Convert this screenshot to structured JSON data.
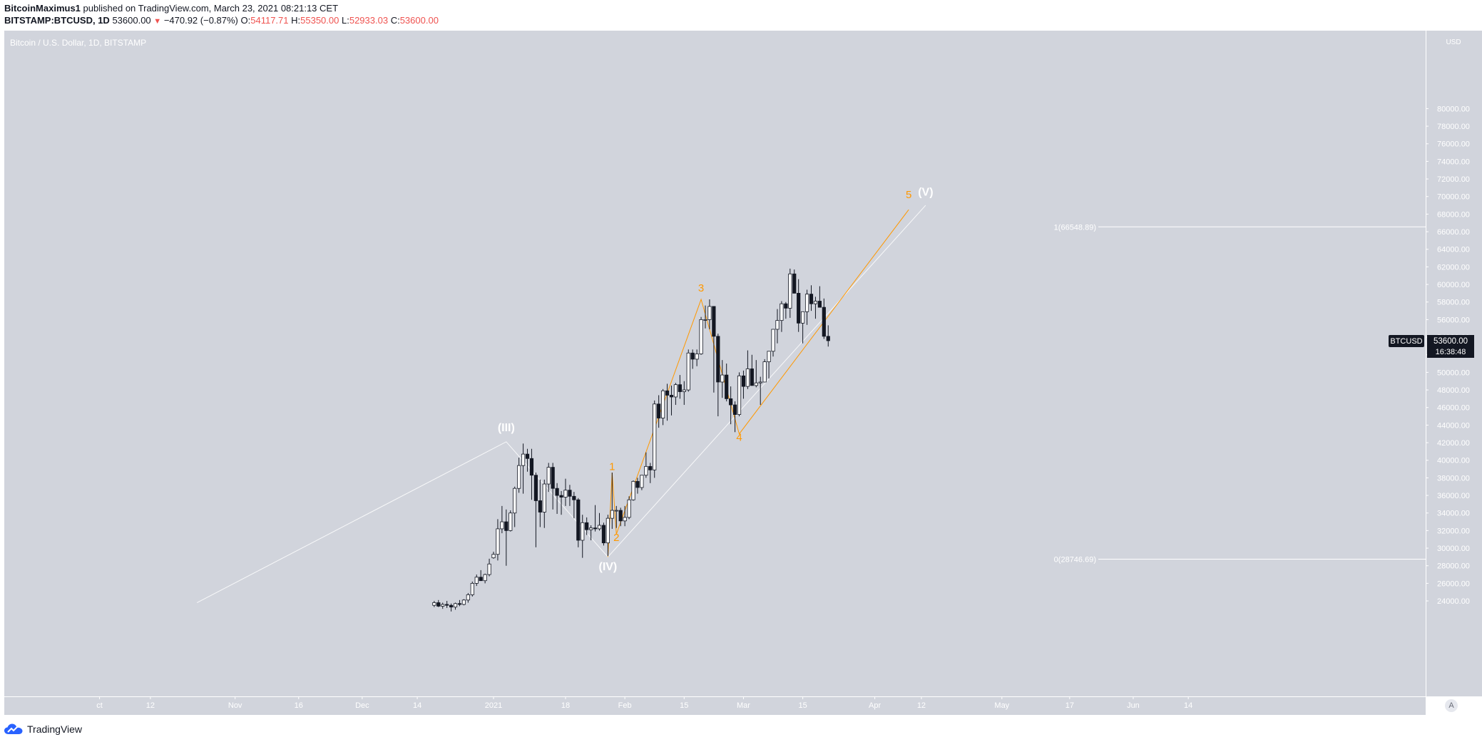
{
  "header": {
    "author": "BitcoinMaximus1",
    "published_text": "published on TradingView.com, March 23, 2021 08:21:13 CET",
    "symbol": "BITSTAMP:BTCUSD, 1D",
    "last": "53600.00",
    "change": "−470.92 (−0.87%)",
    "o_label": "O:",
    "o_value": "54117.71",
    "h_label": "H:",
    "h_value": "55350.00",
    "l_label": "L:",
    "l_value": "52933.03",
    "c_label": "C:",
    "c_value": "53600.00"
  },
  "chart_title": "Bitcoin / U.S. Dollar, 1D, BITSTAMP",
  "price_scale_currency": "USD",
  "price_ticks": [
    "80000.00",
    "78000.00",
    "76000.00",
    "74000.00",
    "72000.00",
    "70000.00",
    "68000.00",
    "66000.00",
    "64000.00",
    "62000.00",
    "60000.00",
    "58000.00",
    "56000.00",
    "54000.00",
    "52000.00",
    "50000.00",
    "48000.00",
    "46000.00",
    "44000.00",
    "42000.00",
    "40000.00",
    "38000.00",
    "36000.00",
    "34000.00",
    "32000.00",
    "30000.00",
    "28000.00",
    "26000.00",
    "24000.00"
  ],
  "time_ticks": [
    {
      "label": "ct",
      "d": -93
    },
    {
      "label": "12",
      "d": -81
    },
    {
      "label": "Nov",
      "d": -61
    },
    {
      "label": "16",
      "d": -46
    },
    {
      "label": "Dec",
      "d": -31
    },
    {
      "label": "14",
      "d": -18
    },
    {
      "label": "2021",
      "d": 0
    },
    {
      "label": "18",
      "d": 17
    },
    {
      "label": "Feb",
      "d": 31
    },
    {
      "label": "15",
      "d": 45
    },
    {
      "label": "Mar",
      "d": 59
    },
    {
      "label": "15",
      "d": 73
    },
    {
      "label": "Apr",
      "d": 90
    },
    {
      "label": "12",
      "d": 101
    },
    {
      "label": "May",
      "d": 120
    },
    {
      "label": "17",
      "d": 136
    },
    {
      "label": "Jun",
      "d": 151
    },
    {
      "label": "14",
      "d": 164
    }
  ],
  "price_label": {
    "symbol": "BTCUSD",
    "value": "53600.00",
    "countdown": "16:38:48"
  },
  "fib_levels": [
    {
      "label": "1(66548.89)",
      "price": 66548.89
    },
    {
      "label": "0(28746.69)",
      "price": 28746.69
    }
  ],
  "wave_labels": [
    {
      "text": "(III)",
      "d": 3,
      "price": 43300,
      "color": "#ffffff"
    },
    {
      "text": "(IV)",
      "d": 27,
      "price": 27500,
      "color": "#ffffff"
    },
    {
      "text": "(V)",
      "d": 102,
      "price": 70100,
      "color": "#ffffff"
    },
    {
      "text": "1",
      "d": 28,
      "price": 38900,
      "color": "#ff9800"
    },
    {
      "text": "2",
      "d": 29,
      "price": 30800,
      "color": "#ff9800"
    },
    {
      "text": "3",
      "d": 49,
      "price": 59200,
      "color": "#ff9800"
    },
    {
      "text": "4",
      "d": 58,
      "price": 42200,
      "color": "#ff9800"
    },
    {
      "text": "5",
      "d": 98,
      "price": 69800,
      "color": "#ff9800"
    }
  ],
  "colors": {
    "chart_bg": "#d1d4dc",
    "axis_bg": "#d1d4dc",
    "candle_up": "#ffffff",
    "candle_down": "#131722",
    "orange_wave": "#ff9800",
    "white_wave": "#ffffff",
    "brand_blue": "#2962ff"
  },
  "chart_data": {
    "type": "candlestick",
    "title": "Bitcoin / U.S. Dollar, 1D, BITSTAMP",
    "x_unit": "days since 2021-01-01",
    "ylim": [
      23500,
      80500
    ],
    "candles": [
      [
        -14,
        23500,
        24000,
        23300,
        23800
      ],
      [
        -13,
        23800,
        24100,
        23300,
        23400
      ],
      [
        -12,
        23400,
        23800,
        23100,
        23600
      ],
      [
        -11,
        23600,
        24000,
        23200,
        23500
      ],
      [
        -10,
        23500,
        23700,
        22800,
        23300
      ],
      [
        -9,
        23300,
        23800,
        23000,
        23700
      ],
      [
        -8,
        23700,
        24100,
        23400,
        23600
      ],
      [
        -7,
        23600,
        24200,
        23500,
        24100
      ],
      [
        -6,
        24100,
        24900,
        23800,
        24700
      ],
      [
        -5,
        24700,
        26200,
        24500,
        26000
      ],
      [
        -4,
        26000,
        27000,
        25700,
        26700
      ],
      [
        -3,
        26700,
        27500,
        26400,
        26300
      ],
      [
        -2,
        26300,
        27100,
        26000,
        27000
      ],
      [
        -1,
        27000,
        28800,
        26800,
        28200
      ],
      [
        0,
        28900,
        29600,
        28800,
        29300
      ],
      [
        1,
        29300,
        33300,
        28600,
        32200
      ],
      [
        2,
        32200,
        34800,
        31700,
        33000
      ],
      [
        3,
        33000,
        34400,
        28000,
        32000
      ],
      [
        4,
        32000,
        34300,
        31900,
        34000
      ],
      [
        5,
        34000,
        37000,
        32400,
        36800
      ],
      [
        6,
        36800,
        40300,
        36300,
        39400
      ],
      [
        7,
        39400,
        41900,
        36200,
        40700
      ],
      [
        8,
        40700,
        41300,
        38700,
        40200
      ],
      [
        9,
        40200,
        41300,
        35500,
        38300
      ],
      [
        10,
        38300,
        38600,
        30100,
        35400
      ],
      [
        11,
        35400,
        37800,
        32400,
        34100
      ],
      [
        12,
        34100,
        37800,
        32300,
        37300
      ],
      [
        13,
        37300,
        39700,
        36400,
        39200
      ],
      [
        14,
        39200,
        39700,
        34400,
        36800
      ],
      [
        15,
        36800,
        37400,
        33900,
        36000
      ],
      [
        16,
        36000,
        36500,
        33800,
        35800
      ],
      [
        17,
        35800,
        37900,
        34800,
        36600
      ],
      [
        18,
        36600,
        37200,
        34800,
        35900
      ],
      [
        19,
        35900,
        36400,
        33400,
        35500
      ],
      [
        20,
        35500,
        35700,
        30100,
        30900
      ],
      [
        21,
        30900,
        33800,
        28900,
        32900
      ],
      [
        22,
        32900,
        33500,
        31500,
        32100
      ],
      [
        23,
        32100,
        32600,
        30900,
        32300
      ],
      [
        24,
        32300,
        34900,
        31900,
        32200
      ],
      [
        25,
        32200,
        34000,
        32000,
        32600
      ],
      [
        26,
        32600,
        32900,
        30300,
        30600
      ],
      [
        27,
        30600,
        33800,
        29100,
        33400
      ],
      [
        28,
        33400,
        38600,
        32200,
        34300
      ],
      [
        29,
        34300,
        34800,
        32300,
        34300
      ],
      [
        30,
        34300,
        34600,
        32500,
        33100
      ],
      [
        31,
        33100,
        34800,
        32500,
        33500
      ],
      [
        32,
        33500,
        35900,
        33300,
        35500
      ],
      [
        33,
        35500,
        37700,
        35400,
        37600
      ],
      [
        34,
        37600,
        38000,
        36200,
        36900
      ],
      [
        35,
        36900,
        38300,
        36600,
        38300
      ],
      [
        36,
        38300,
        40900,
        38000,
        39300
      ],
      [
        37,
        39300,
        39700,
        37400,
        38900
      ],
      [
        38,
        38900,
        46800,
        38000,
        46400
      ],
      [
        39,
        46400,
        47400,
        43700,
        44800
      ],
      [
        40,
        44800,
        48100,
        44000,
        47900
      ],
      [
        41,
        47900,
        48700,
        44500,
        47400
      ],
      [
        42,
        47400,
        48500,
        45100,
        47200
      ],
      [
        43,
        47200,
        48800,
        46300,
        48600
      ],
      [
        44,
        48600,
        49700,
        47000,
        47800
      ],
      [
        45,
        47800,
        49000,
        46300,
        48000
      ],
      [
        46,
        48000,
        52600,
        47800,
        52200
      ],
      [
        47,
        52200,
        52600,
        50400,
        51500
      ],
      [
        48,
        51500,
        52600,
        50700,
        52100
      ],
      [
        49,
        52100,
        56300,
        52000,
        56000
      ],
      [
        50,
        56000,
        57600,
        55000,
        56000
      ],
      [
        51,
        56000,
        58300,
        54900,
        57500
      ],
      [
        52,
        57500,
        57500,
        47700,
        54100
      ],
      [
        53,
        54100,
        54400,
        45000,
        48900
      ],
      [
        54,
        48900,
        51400,
        47100,
        49700
      ],
      [
        55,
        49700,
        51000,
        46700,
        47000
      ],
      [
        56,
        47000,
        48400,
        44100,
        46300
      ],
      [
        57,
        46300,
        46700,
        43200,
        45200
      ],
      [
        58,
        45200,
        50000,
        45000,
        49600
      ],
      [
        59,
        49600,
        50200,
        47000,
        48400
      ],
      [
        60,
        48400,
        52500,
        48100,
        50400
      ],
      [
        61,
        50400,
        52000,
        48900,
        48500
      ],
      [
        62,
        48500,
        51400,
        48300,
        48800
      ],
      [
        63,
        48800,
        49500,
        46300,
        48900
      ],
      [
        64,
        48900,
        51500,
        48900,
        51200
      ],
      [
        65,
        51200,
        52400,
        49300,
        52400
      ],
      [
        66,
        52400,
        54900,
        51800,
        54900
      ],
      [
        67,
        54900,
        57200,
        53300,
        55900
      ],
      [
        68,
        55900,
        58100,
        54600,
        57800
      ],
      [
        69,
        57800,
        58000,
        56100,
        57300
      ],
      [
        70,
        57300,
        61800,
        56200,
        61200
      ],
      [
        71,
        61200,
        61700,
        59000,
        59000
      ],
      [
        72,
        59000,
        60600,
        54600,
        55600
      ],
      [
        73,
        55600,
        56900,
        53300,
        56900
      ],
      [
        74,
        56900,
        59400,
        55400,
        58900
      ],
      [
        75,
        58900,
        59900,
        57000,
        57800
      ],
      [
        76,
        57800,
        58600,
        56100,
        58100
      ],
      [
        77,
        58100,
        59800,
        57700,
        57400
      ],
      [
        78,
        57400,
        58400,
        53800,
        54100
      ],
      [
        79,
        54100,
        55350,
        52933,
        53600
      ]
    ],
    "wave_lines": [
      {
        "color": "#ffffff",
        "points": [
          [
            -70,
            23800
          ],
          [
            3,
            42100
          ],
          [
            27,
            29000
          ],
          [
            102,
            69000
          ]
        ]
      },
      {
        "color": "#ff9800",
        "points": [
          [
            27,
            29000
          ],
          [
            28,
            38600
          ],
          [
            29,
            31600
          ],
          [
            49,
            58300
          ],
          [
            58,
            43000
          ],
          [
            98,
            68500
          ]
        ]
      }
    ]
  }
}
